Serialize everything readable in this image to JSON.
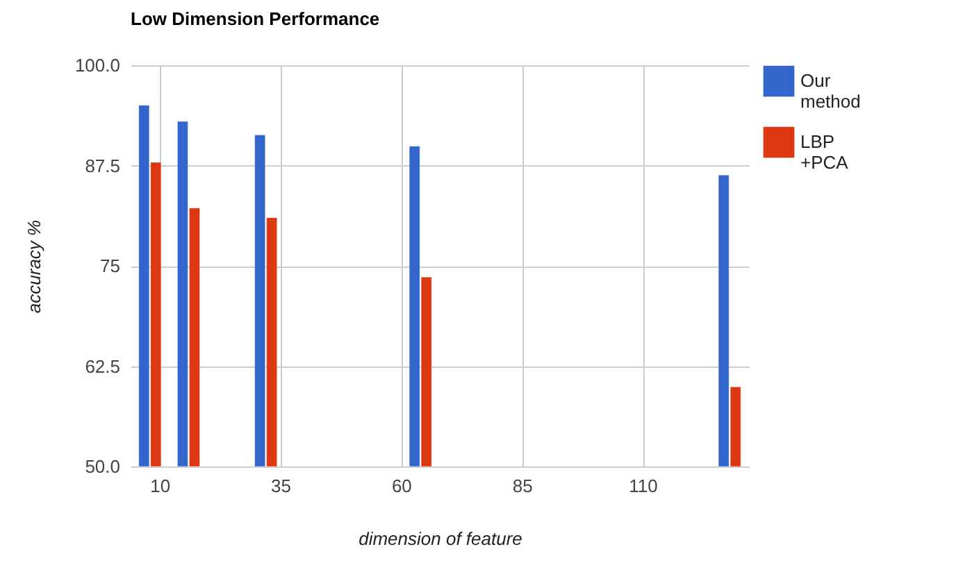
{
  "chart_data": {
    "type": "bar",
    "title": "Low Dimension Performance",
    "xlabel": "dimension of feature",
    "ylabel": "accuracy %",
    "x": [
      8,
      16,
      32,
      64,
      128
    ],
    "series": [
      {
        "name": "Our method",
        "color": "#3366cc",
        "values": [
          95.0,
          93.0,
          91.3,
          89.9,
          86.3
        ]
      },
      {
        "name": "LBP+PCA",
        "color": "#dc3912",
        "values": [
          87.9,
          82.2,
          81.0,
          73.6,
          59.9
        ]
      }
    ],
    "xlim": [
      4,
      132
    ],
    "xticks": [
      10,
      35,
      60,
      85,
      110
    ],
    "ylim": [
      50,
      100
    ],
    "yticks": [
      {
        "value": 50,
        "label": "50.0"
      },
      62.5,
      75,
      87.5,
      {
        "value": 100,
        "label": "100.0"
      }
    ],
    "grid": true,
    "legend": "right"
  }
}
